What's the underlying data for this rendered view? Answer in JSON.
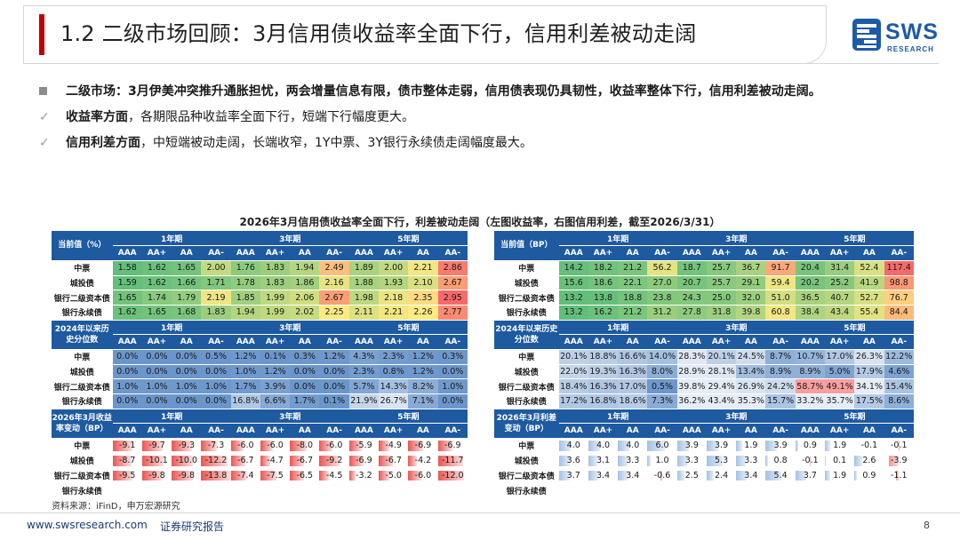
{
  "header": {
    "title": "1.2 二级市场回顾：3月信用债收益率全面下行，信用利差被动走阔",
    "logo_text": "SWS",
    "logo_sub": "RESEARCH",
    "accent_color": "#c00000",
    "brand_color": "#1e5aa8"
  },
  "bullets": {
    "main": "二级市场：3月伊美冲突推升通胀担忧，两会增量信息有限，债市整体走弱，信用债表现仍具韧性，收益率整体下行，信用利差被动走阔。",
    "sub1_bold": "收益率方面",
    "sub1_text": "，各期限品种收益率全面下行，短端下行幅度更大。",
    "sub2_bold": "信用利差方面",
    "sub2_text": "，中短端被动走阔，长端收窄，1Y中票、3Y银行永续债走阔幅度最大。"
  },
  "table_title": "2026年3月信用债收益率全面下行，利差被动走阔（左图收益率，右图信用利差，截至2026/3/31）",
  "tables": {
    "terms": [
      "1年期",
      "3年期",
      "5年期"
    ],
    "ratings": [
      "AAA",
      "AA+",
      "AA",
      "AA-",
      "AAA",
      "AA+",
      "AA",
      "AA-",
      "AAA",
      "AA+",
      "AA",
      "AA-"
    ],
    "row_labels": [
      "中票",
      "城投债",
      "银行二级资本债",
      "银行永续债"
    ],
    "left": [
      {
        "kind": "heat",
        "header": "当前值（%）",
        "rows": [
          [
            "1.58",
            "1.62",
            "1.65",
            "2.00",
            "1.76",
            "1.83",
            "1.94",
            "2.49",
            "1.89",
            "2.00",
            "2.21",
            "2.86"
          ],
          [
            "1.59",
            "1.62",
            "1.66",
            "1.71",
            "1.78",
            "1.83",
            "1.86",
            "2.16",
            "1.88",
            "1.93",
            "2.10",
            "2.67"
          ],
          [
            "1.65",
            "1.74",
            "1.79",
            "2.19",
            "1.85",
            "1.99",
            "2.06",
            "2.67",
            "1.98",
            "2.18",
            "2.35",
            "2.95"
          ],
          [
            "1.62",
            "1.65",
            "1.68",
            "1.83",
            "1.94",
            "1.99",
            "2.02",
            "2.25",
            "2.11",
            "2.21",
            "2.26",
            "2.77"
          ]
        ]
      },
      {
        "kind": "pct",
        "header": "2024年以来历史分位数",
        "rows": [
          [
            "0.0%",
            "0.0%",
            "0.0%",
            "0.5%",
            "1.2%",
            "0.1%",
            "0.3%",
            "1.2%",
            "4.3%",
            "2.3%",
            "1.2%",
            "0.3%"
          ],
          [
            "0.0%",
            "0.0%",
            "0.0%",
            "0.0%",
            "1.0%",
            "1.2%",
            "0.0%",
            "0.0%",
            "2.3%",
            "0.8%",
            "1.2%",
            "0.0%"
          ],
          [
            "1.0%",
            "1.0%",
            "1.0%",
            "1.0%",
            "1.7%",
            "3.9%",
            "0.0%",
            "0.0%",
            "5.7%",
            "14.3%",
            "8.2%",
            "1.0%"
          ],
          [
            "0.0%",
            "0.0%",
            "0.0%",
            "0.0%",
            "16.8%",
            "6.6%",
            "1.7%",
            "0.1%",
            "21.9%",
            "26.7%",
            "7.1%",
            "0.0%"
          ]
        ]
      },
      {
        "kind": "bar",
        "header": "2026年3月收益率变动（BP）",
        "rows": [
          [
            "-9.1",
            "-9.7",
            "-9.3",
            "-7.3",
            "-6.0",
            "-6.0",
            "-8.0",
            "-6.0",
            "-5.9",
            "-4.9",
            "-6.9",
            "-6.9"
          ],
          [
            "-8.7",
            "-10.1",
            "-10.0",
            "-12.2",
            "-6.7",
            "-4.7",
            "-6.7",
            "-9.2",
            "-6.9",
            "-6.7",
            "-4.2",
            "-11.7"
          ],
          [
            "-9.5",
            "-9.8",
            "-9.8",
            "-13.8",
            "-7.4",
            "-7.5",
            "-6.5",
            "-4.5",
            "-3.2",
            "-5.0",
            "-6.0",
            "-12.0"
          ],
          [
            "",
            "",
            "",
            "",
            "",
            "",
            "",
            "",
            "",
            "",
            "",
            ""
          ]
        ]
      }
    ],
    "right": [
      {
        "kind": "heat",
        "header": "当前值（BP）",
        "rows": [
          [
            "14.2",
            "18.2",
            "21.2",
            "56.2",
            "18.7",
            "25.7",
            "36.7",
            "91.7",
            "20.4",
            "31.4",
            "52.4",
            "117.4"
          ],
          [
            "15.6",
            "18.6",
            "22.1",
            "27.0",
            "20.7",
            "25.7",
            "29.1",
            "59.4",
            "20.2",
            "25.2",
            "41.9",
            "98.8"
          ],
          [
            "13.2",
            "13.8",
            "18.8",
            "23.8",
            "24.3",
            "25.0",
            "32.0",
            "51.0",
            "36.5",
            "40.7",
            "52.7",
            "76.7"
          ],
          [
            "13.2",
            "16.2",
            "21.2",
            "31.2",
            "27.8",
            "31.8",
            "39.8",
            "60.8",
            "38.4",
            "43.4",
            "55.4",
            "84.4"
          ]
        ]
      },
      {
        "kind": "pct",
        "header": "2024年以来历史分位数",
        "rows": [
          [
            "20.1%",
            "18.8%",
            "16.6%",
            "14.0%",
            "28.3%",
            "20.1%",
            "24.5%",
            "8.7%",
            "10.7%",
            "17.0%",
            "26.3%",
            "12.2%"
          ],
          [
            "22.0%",
            "19.3%",
            "16.3%",
            "8.0%",
            "28.9%",
            "28.1%",
            "13.4%",
            "8.9%",
            "8.9%",
            "5.0%",
            "17.9%",
            "4.6%"
          ],
          [
            "18.4%",
            "16.3%",
            "17.0%",
            "0.5%",
            "39.8%",
            "29.4%",
            "26.9%",
            "24.2%",
            "58.7%",
            "49.1%",
            "34.1%",
            "15.4%"
          ],
          [
            "17.2%",
            "16.8%",
            "18.6%",
            "7.3%",
            "36.2%",
            "43.4%",
            "35.3%",
            "15.7%",
            "33.2%",
            "35.7%",
            "17.5%",
            "8.6%"
          ]
        ]
      },
      {
        "kind": "bar",
        "header": "2026年3月利差变动（BP）",
        "rows": [
          [
            "4.0",
            "4.0",
            "4.0",
            "6.0",
            "3.9",
            "3.9",
            "1.9",
            "3.9",
            "0.9",
            "1.9",
            "-0.1",
            "-0.1"
          ],
          [
            "3.6",
            "3.1",
            "3.3",
            "1.0",
            "3.3",
            "5.3",
            "3.3",
            "0.8",
            "-0.1",
            "0.1",
            "2.6",
            "-3.9"
          ],
          [
            "3.7",
            "3.4",
            "3.4",
            "-0.6",
            "2.5",
            "2.4",
            "3.4",
            "5.4",
            "3.7",
            "1.9",
            "0.9",
            "-1.1"
          ],
          [
            "",
            "",
            "",
            "",
            "",
            "",
            "",
            "",
            "",
            "",
            "",
            ""
          ]
        ]
      }
    ]
  },
  "colors": {
    "header_blue": "#1e5aa0",
    "heat_low": "#63be7b",
    "heat_mid": "#ffeb84",
    "heat_high": "#f8696b",
    "pct_blue": "#5a8ac6",
    "bar_red": "#e53935",
    "bar_blue": "#5b8fd0"
  },
  "source": "资料来源：iFinD，申万宏源研究",
  "footer": {
    "url": "www.swsresearch.com",
    "tag": "证券研究报告",
    "page": "8"
  }
}
